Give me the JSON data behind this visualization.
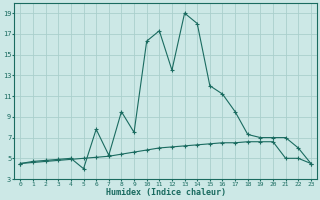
{
  "xlabel": "Humidex (Indice chaleur)",
  "background_color": "#cce8e6",
  "grid_color": "#aacfcc",
  "line_color": "#1a6b60",
  "xlim": [
    -0.5,
    23.5
  ],
  "ylim": [
    3,
    20
  ],
  "xticks": [
    0,
    1,
    2,
    3,
    4,
    5,
    6,
    7,
    8,
    9,
    10,
    11,
    12,
    13,
    14,
    15,
    16,
    17,
    18,
    19,
    20,
    21,
    22,
    23
  ],
  "yticks": [
    3,
    5,
    7,
    9,
    11,
    13,
    15,
    17,
    19
  ],
  "line1_x": [
    0,
    1,
    2,
    3,
    4,
    5,
    6,
    7,
    8,
    9,
    10,
    11,
    12,
    13,
    14,
    15,
    16,
    17,
    18,
    19,
    20,
    21,
    22,
    23
  ],
  "line1_y": [
    4.5,
    4.7,
    4.8,
    4.9,
    5.0,
    4.0,
    7.8,
    5.3,
    9.5,
    7.5,
    16.3,
    17.3,
    13.5,
    19.0,
    18.0,
    12.0,
    11.2,
    9.5,
    7.3,
    7.0,
    7.0,
    7.0,
    6.0,
    4.5
  ],
  "line2_x": [
    0,
    1,
    2,
    3,
    4,
    5,
    6,
    7,
    8,
    9,
    10,
    11,
    12,
    13,
    14,
    15,
    16,
    17,
    18,
    19,
    20,
    21,
    22,
    23
  ],
  "line2_y": [
    4.5,
    4.6,
    4.7,
    4.8,
    4.9,
    5.0,
    5.1,
    5.2,
    5.4,
    5.6,
    5.8,
    6.0,
    6.1,
    6.2,
    6.3,
    6.4,
    6.5,
    6.5,
    6.6,
    6.6,
    6.6,
    5.0,
    5.0,
    4.5
  ]
}
